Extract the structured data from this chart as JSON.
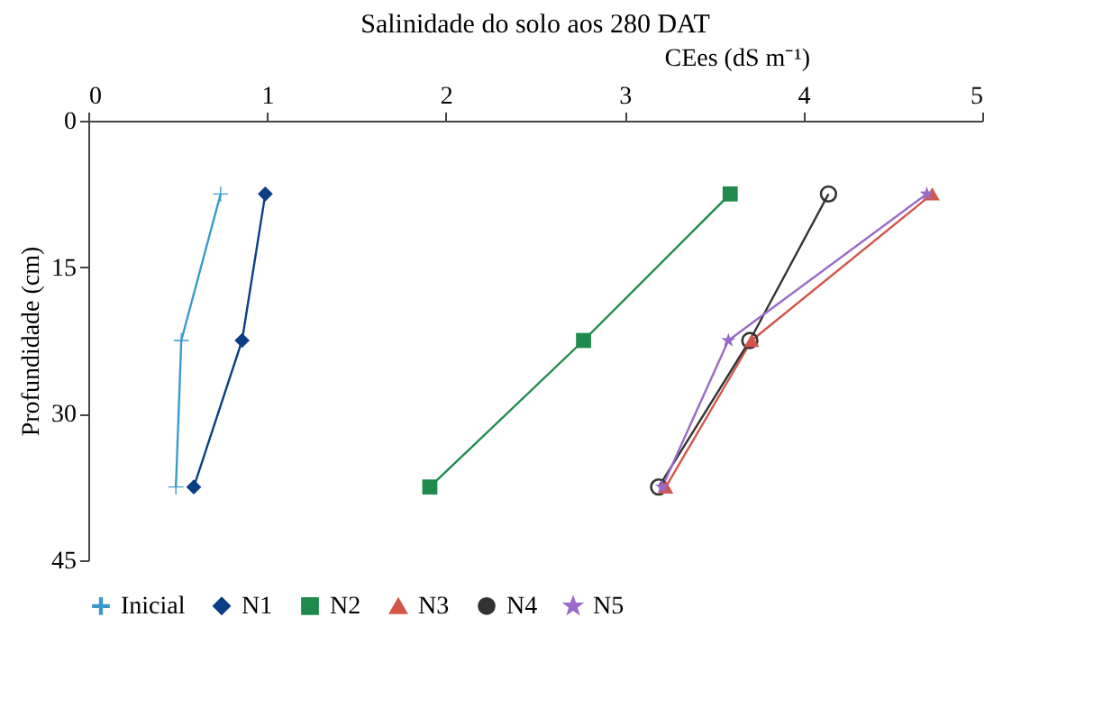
{
  "chart_data": {
    "type": "line",
    "title": "Salinidade do solo aos 280 DAT",
    "xlabel": "CEes (dS m⁻¹)",
    "ylabel": "Profundidade (cm)",
    "orientation": "horizontal",
    "x": [
      7.5,
      22.5,
      37.5
    ],
    "series": [
      {
        "name": "Inicial",
        "color": "#3a9ad0",
        "marker": "cross",
        "values": [
          0.74,
          0.52,
          0.49
        ]
      },
      {
        "name": "N1",
        "color": "#0b3f85",
        "marker": "diamond",
        "values": [
          0.99,
          0.86,
          0.59
        ]
      },
      {
        "name": "N2",
        "color": "#1e8a4c",
        "marker": "square",
        "values": [
          3.59,
          2.77,
          1.91
        ]
      },
      {
        "name": "N3",
        "color": "#d2564a",
        "marker": "triangle",
        "values": [
          4.72,
          3.71,
          3.23
        ]
      },
      {
        "name": "N4",
        "color": "#333333",
        "marker": "circle",
        "values": [
          4.14,
          3.7,
          3.19
        ]
      },
      {
        "name": "N5",
        "color": "#9a6ac8",
        "marker": "star",
        "values": [
          4.69,
          3.58,
          3.21
        ]
      }
    ],
    "xlim": [
      0,
      5
    ],
    "xticks": [
      0,
      1,
      2,
      3,
      4,
      5
    ],
    "ylim": [
      45,
      0
    ],
    "yticks": [
      0,
      15,
      30,
      45
    ],
    "grid": false,
    "legend": "bottom",
    "line_style": "solid"
  }
}
